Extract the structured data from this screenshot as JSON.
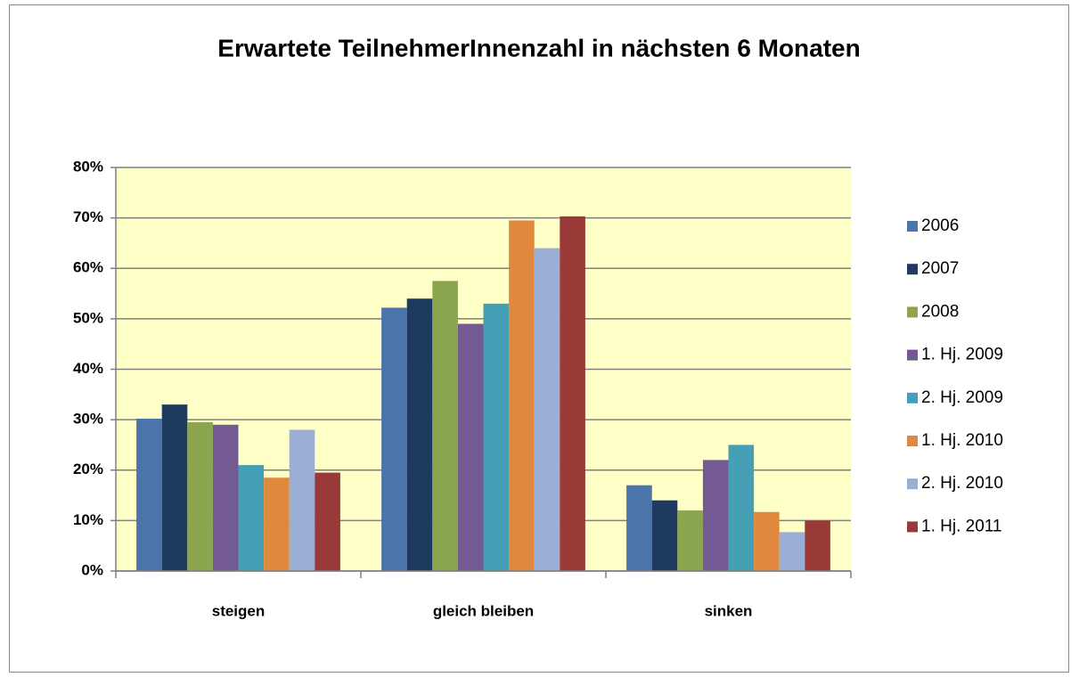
{
  "chart_data": {
    "type": "bar",
    "title": "Erwartete TeilnehmerInnenzahl in nächsten 6 Monaten",
    "categories": [
      "steigen",
      "gleich bleiben",
      "sinken"
    ],
    "series": [
      {
        "name": "2006",
        "color": "#4a74aa",
        "values": [
          30.2,
          52.2,
          17
        ]
      },
      {
        "name": "2007",
        "color": "#1f3a5f",
        "values": [
          33,
          54,
          14
        ]
      },
      {
        "name": "2008",
        "color": "#8aa54e",
        "values": [
          29.5,
          57.5,
          12
        ]
      },
      {
        "name": "1. Hj. 2009",
        "color": "#735a93",
        "values": [
          29,
          49,
          22
        ]
      },
      {
        "name": "2. Hj. 2009",
        "color": "#45a0b5",
        "values": [
          21,
          53,
          25
        ]
      },
      {
        "name": "1. Hj. 2010",
        "color": "#e0893e",
        "values": [
          18.5,
          69.5,
          11.7
        ]
      },
      {
        "name": "2. Hj. 2010",
        "color": "#9aaed6",
        "values": [
          28,
          64,
          7.7
        ]
      },
      {
        "name": "1. Hj. 2011",
        "color": "#9a3a38",
        "values": [
          19.5,
          70.3,
          10
        ]
      }
    ],
    "ylim": [
      0,
      80
    ],
    "yticks": [
      {
        "value": 0,
        "label": "0%"
      },
      {
        "value": 10,
        "label": "10%"
      },
      {
        "value": 20,
        "label": "20%"
      },
      {
        "value": 30,
        "label": "30%"
      },
      {
        "value": 40,
        "label": "40%"
      },
      {
        "value": 50,
        "label": "50%"
      },
      {
        "value": 60,
        "label": "60%"
      },
      {
        "value": 70,
        "label": "70%"
      },
      {
        "value": 80,
        "label": "80%"
      }
    ],
    "grid": true,
    "legend": "right"
  }
}
